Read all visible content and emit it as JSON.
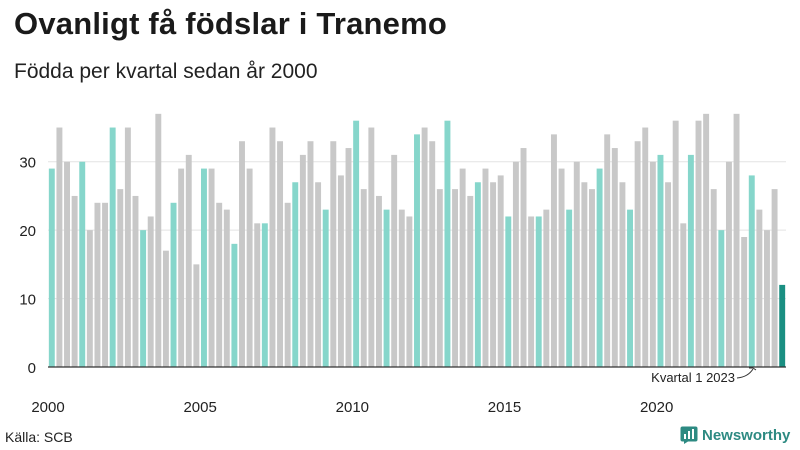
{
  "header": {
    "title": "Ovanligt få födslar i Tranemo",
    "subtitle": "Födda per kvartal sedan år 2000"
  },
  "footer": {
    "source": "Källa: SCB",
    "brand": "Newsworthy"
  },
  "colors": {
    "q1": "#86d6cb",
    "other": "#c8c8c8",
    "latest": "#1a8f82",
    "brand": "#2d8a82"
  },
  "chart_data": {
    "type": "bar",
    "title": "Ovanligt få födslar i Tranemo",
    "subtitle": "Födda per kvartal sedan år 2000",
    "ylim": [
      0,
      38
    ],
    "yticks": [
      0,
      10,
      20,
      30
    ],
    "xtick_labels": [
      "2000",
      "2005",
      "2010",
      "2015",
      "2020"
    ],
    "start_year": 2000,
    "grid": true,
    "annotation": "Kvartal 1 2023",
    "series": [
      {
        "values": [
          29,
          35,
          30,
          25,
          30,
          20,
          24,
          24,
          35,
          26,
          35,
          25,
          20,
          22,
          37,
          17,
          24,
          29,
          31,
          15,
          29,
          29,
          24,
          23,
          18,
          33,
          29,
          21,
          21,
          35,
          33,
          24,
          27,
          31,
          33,
          27,
          23,
          33,
          28,
          32,
          36,
          26,
          35,
          25,
          23,
          31,
          23,
          22,
          34,
          35,
          33,
          26,
          36,
          26,
          29,
          25,
          27,
          29,
          27,
          28,
          22,
          30,
          32,
          22,
          22,
          23,
          34,
          29,
          23,
          30,
          27,
          26,
          29,
          34,
          32,
          27,
          23,
          33,
          35,
          30,
          31,
          27,
          36,
          21,
          31,
          36,
          37,
          26,
          20,
          30,
          37,
          19,
          28,
          23,
          20,
          26,
          12
        ]
      }
    ]
  }
}
